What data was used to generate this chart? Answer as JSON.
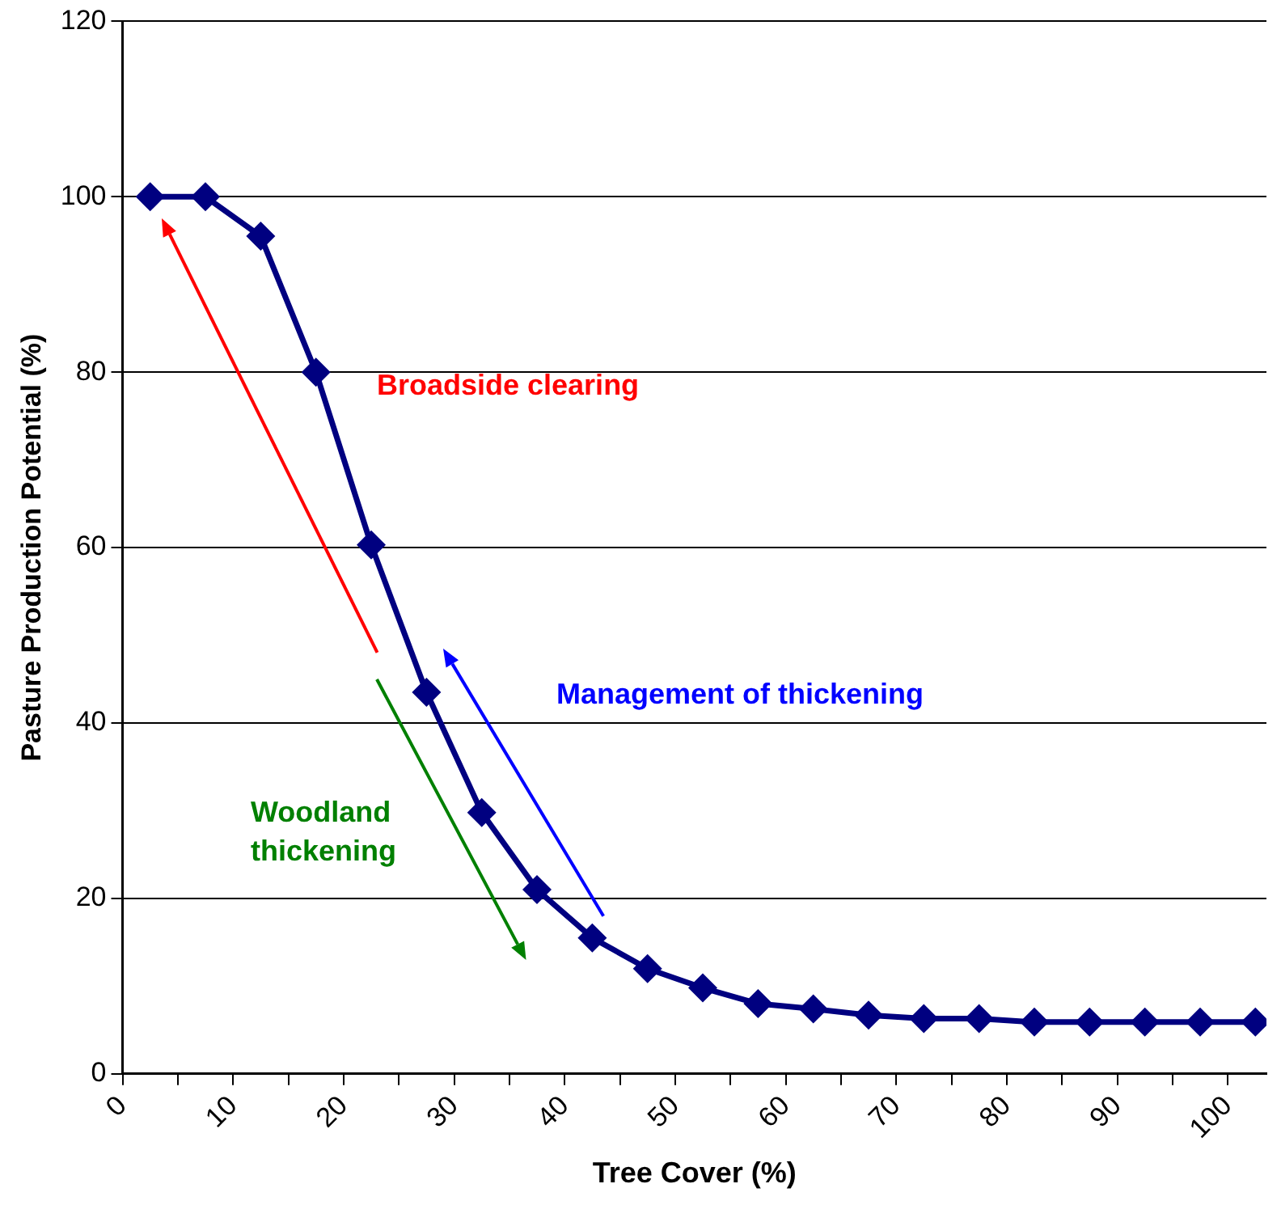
{
  "chart_data": {
    "type": "line",
    "xlabel": "Tree Cover (%)",
    "ylabel": "Pasture Production Potential (%)",
    "x": [
      2.5,
      7.5,
      12.5,
      17.5,
      22.5,
      27.5,
      32.5,
      37.5,
      42.5,
      47.5,
      52.5,
      57.5,
      62.5,
      67.5,
      72.5,
      77.5,
      82.5,
      87.5,
      92.5,
      97.5,
      102.5
    ],
    "series": [
      {
        "color": "#000080",
        "values": [
          100,
          100,
          95.5,
          80,
          60.3,
          43.5,
          29.8,
          21,
          15.5,
          12,
          9.8,
          8,
          7.4,
          6.7,
          6.3,
          6.3,
          5.9,
          5.9,
          5.9,
          5.9,
          5.9
        ]
      }
    ],
    "xlim": [
      0,
      103.5
    ],
    "xticks": [
      0,
      {
        "value": 5,
        "label": null
      },
      10,
      {
        "value": 15,
        "label": null
      },
      20,
      {
        "value": 25,
        "label": null
      },
      30,
      {
        "value": 35,
        "label": null
      },
      40,
      {
        "value": 45,
        "label": null
      },
      50,
      {
        "value": 55,
        "label": null
      },
      60,
      {
        "value": 65,
        "label": null
      },
      70,
      {
        "value": 75,
        "label": null
      },
      80,
      {
        "value": 85,
        "label": null
      },
      90,
      {
        "value": 95,
        "label": null
      },
      100
    ],
    "ylim": [
      0,
      120
    ],
    "yticks": [
      0,
      20,
      40,
      60,
      80,
      100,
      120
    ],
    "grid": "y",
    "legend": false,
    "marker": "diamond",
    "line_style": "solid",
    "annotations": [
      "Broadside clearing",
      "Management of thickening",
      "Woodland\nthickening"
    ]
  }
}
